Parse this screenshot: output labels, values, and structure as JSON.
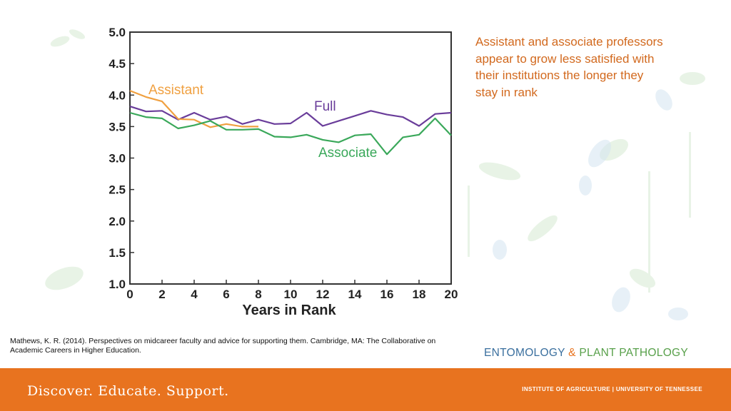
{
  "caption": "Assistant and associate professors appear to grow less satisfied with their institutions the longer they stay in rank",
  "citation": "Mathews, K. R. (2014). Perspectives on midcareer faculty and advice for supporting them. Cambridge, MA: The Collaborative on Academic Careers in Higher Education.",
  "department": {
    "part1": "ENTOMOLOGY",
    "amp": "&",
    "part2": "PLANT PATHOLOGY"
  },
  "footer": {
    "tagline": "Discover. Educate. Support.",
    "institute": "INSTITUTE OF AGRICULTURE | UNIVERSITY OF TENNESSEE"
  },
  "colors": {
    "accent_orange": "#e8731f",
    "caption_orange": "#d2691e",
    "full": "#6a3d9a",
    "assistant": "#f0a040",
    "associate": "#3aa85a"
  },
  "chart_data": {
    "type": "line",
    "title": "",
    "xlabel": "Years in Rank",
    "ylabel": "",
    "xlim": [
      0,
      20
    ],
    "ylim": [
      1.0,
      5.0
    ],
    "xticks": [
      "0",
      "2",
      "4",
      "6",
      "8",
      "10",
      "12",
      "14",
      "16",
      "18",
      "20"
    ],
    "yticks": [
      "1.0",
      "1.5",
      "2.0",
      "2.5",
      "3.0",
      "3.5",
      "4.0",
      "4.5",
      "5.0"
    ],
    "series": [
      {
        "name": "Full",
        "color": "#6a3d9a",
        "x": [
          0,
          1,
          2,
          3,
          4,
          5,
          6,
          7,
          8,
          9,
          10,
          11,
          12,
          13,
          14,
          15,
          16,
          17,
          18,
          19,
          20
        ],
        "y": [
          3.82,
          3.74,
          3.75,
          3.61,
          3.72,
          3.61,
          3.66,
          3.54,
          3.61,
          3.54,
          3.55,
          3.72,
          3.51,
          3.59,
          3.67,
          3.75,
          3.69,
          3.65,
          3.51,
          3.7,
          3.72
        ]
      },
      {
        "name": "Assistant",
        "color": "#f0a040",
        "x": [
          0,
          1,
          2,
          3,
          4,
          5,
          6,
          7,
          8
        ],
        "y": [
          4.07,
          3.97,
          3.9,
          3.62,
          3.61,
          3.49,
          3.54,
          3.5,
          3.5
        ]
      },
      {
        "name": "Associate",
        "color": "#3aa85a",
        "x": [
          0,
          1,
          2,
          3,
          4,
          5,
          6,
          7,
          8,
          9,
          10,
          11,
          12,
          13,
          14,
          15,
          16,
          17,
          18,
          19,
          20
        ],
        "y": [
          3.72,
          3.65,
          3.63,
          3.47,
          3.52,
          3.59,
          3.45,
          3.45,
          3.46,
          3.34,
          3.33,
          3.37,
          3.29,
          3.25,
          3.36,
          3.38,
          3.06,
          3.33,
          3.37,
          3.63,
          3.36
        ]
      }
    ]
  }
}
